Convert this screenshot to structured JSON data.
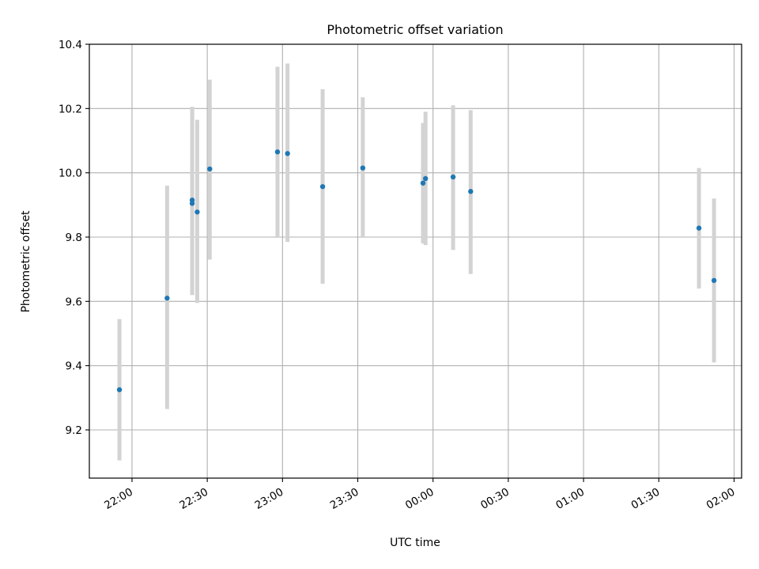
{
  "chart_data": {
    "type": "scatter",
    "title": "Photometric offset variation",
    "xlabel": "UTC time",
    "ylabel": "Photometric offset",
    "xlim": [
      "21:43",
      "02:03"
    ],
    "ylim": [
      9.05,
      10.4
    ],
    "grid": true,
    "x_ticks": [
      "22:00",
      "22:30",
      "23:00",
      "23:30",
      "00:00",
      "00:30",
      "01:00",
      "01:30",
      "02:00"
    ],
    "y_ticks": [
      9.2,
      9.4,
      9.6,
      9.8,
      10.0,
      10.2,
      10.4
    ],
    "y_tick_labels": [
      "9.2",
      "9.4",
      "9.6",
      "9.8",
      "10.0",
      "10.2",
      "10.4"
    ],
    "colors": {
      "marker": "#1f77b4",
      "errorbar": "#d3d3d3",
      "grid": "#b0b0b0"
    },
    "points": [
      {
        "t": "21:55",
        "y": 9.325,
        "lo": 9.105,
        "hi": 9.545
      },
      {
        "t": "22:14",
        "y": 9.61,
        "lo": 9.265,
        "hi": 9.96
      },
      {
        "t": "22:24",
        "y": 9.915,
        "lo": 9.62,
        "hi": 10.205
      },
      {
        "t": "22:24",
        "y": 9.905,
        "lo": 9.62,
        "hi": 10.205
      },
      {
        "t": "22:26",
        "y": 9.878,
        "lo": 9.595,
        "hi": 10.165
      },
      {
        "t": "22:31",
        "y": 10.012,
        "lo": 9.73,
        "hi": 10.29
      },
      {
        "t": "22:58",
        "y": 10.065,
        "lo": 9.8,
        "hi": 10.33
      },
      {
        "t": "23:02",
        "y": 10.06,
        "lo": 9.785,
        "hi": 10.34
      },
      {
        "t": "23:16",
        "y": 9.957,
        "lo": 9.655,
        "hi": 10.26
      },
      {
        "t": "23:32",
        "y": 10.015,
        "lo": 9.8,
        "hi": 10.235
      },
      {
        "t": "23:56",
        "y": 9.968,
        "lo": 9.78,
        "hi": 10.155
      },
      {
        "t": "23:57",
        "y": 9.982,
        "lo": 9.775,
        "hi": 10.19
      },
      {
        "t": "00:08",
        "y": 9.987,
        "lo": 9.76,
        "hi": 10.21
      },
      {
        "t": "00:15",
        "y": 9.942,
        "lo": 9.685,
        "hi": 10.195
      },
      {
        "t": "01:46",
        "y": 9.828,
        "lo": 9.64,
        "hi": 10.015
      },
      {
        "t": "01:52",
        "y": 9.665,
        "lo": 9.41,
        "hi": 9.92
      }
    ]
  }
}
